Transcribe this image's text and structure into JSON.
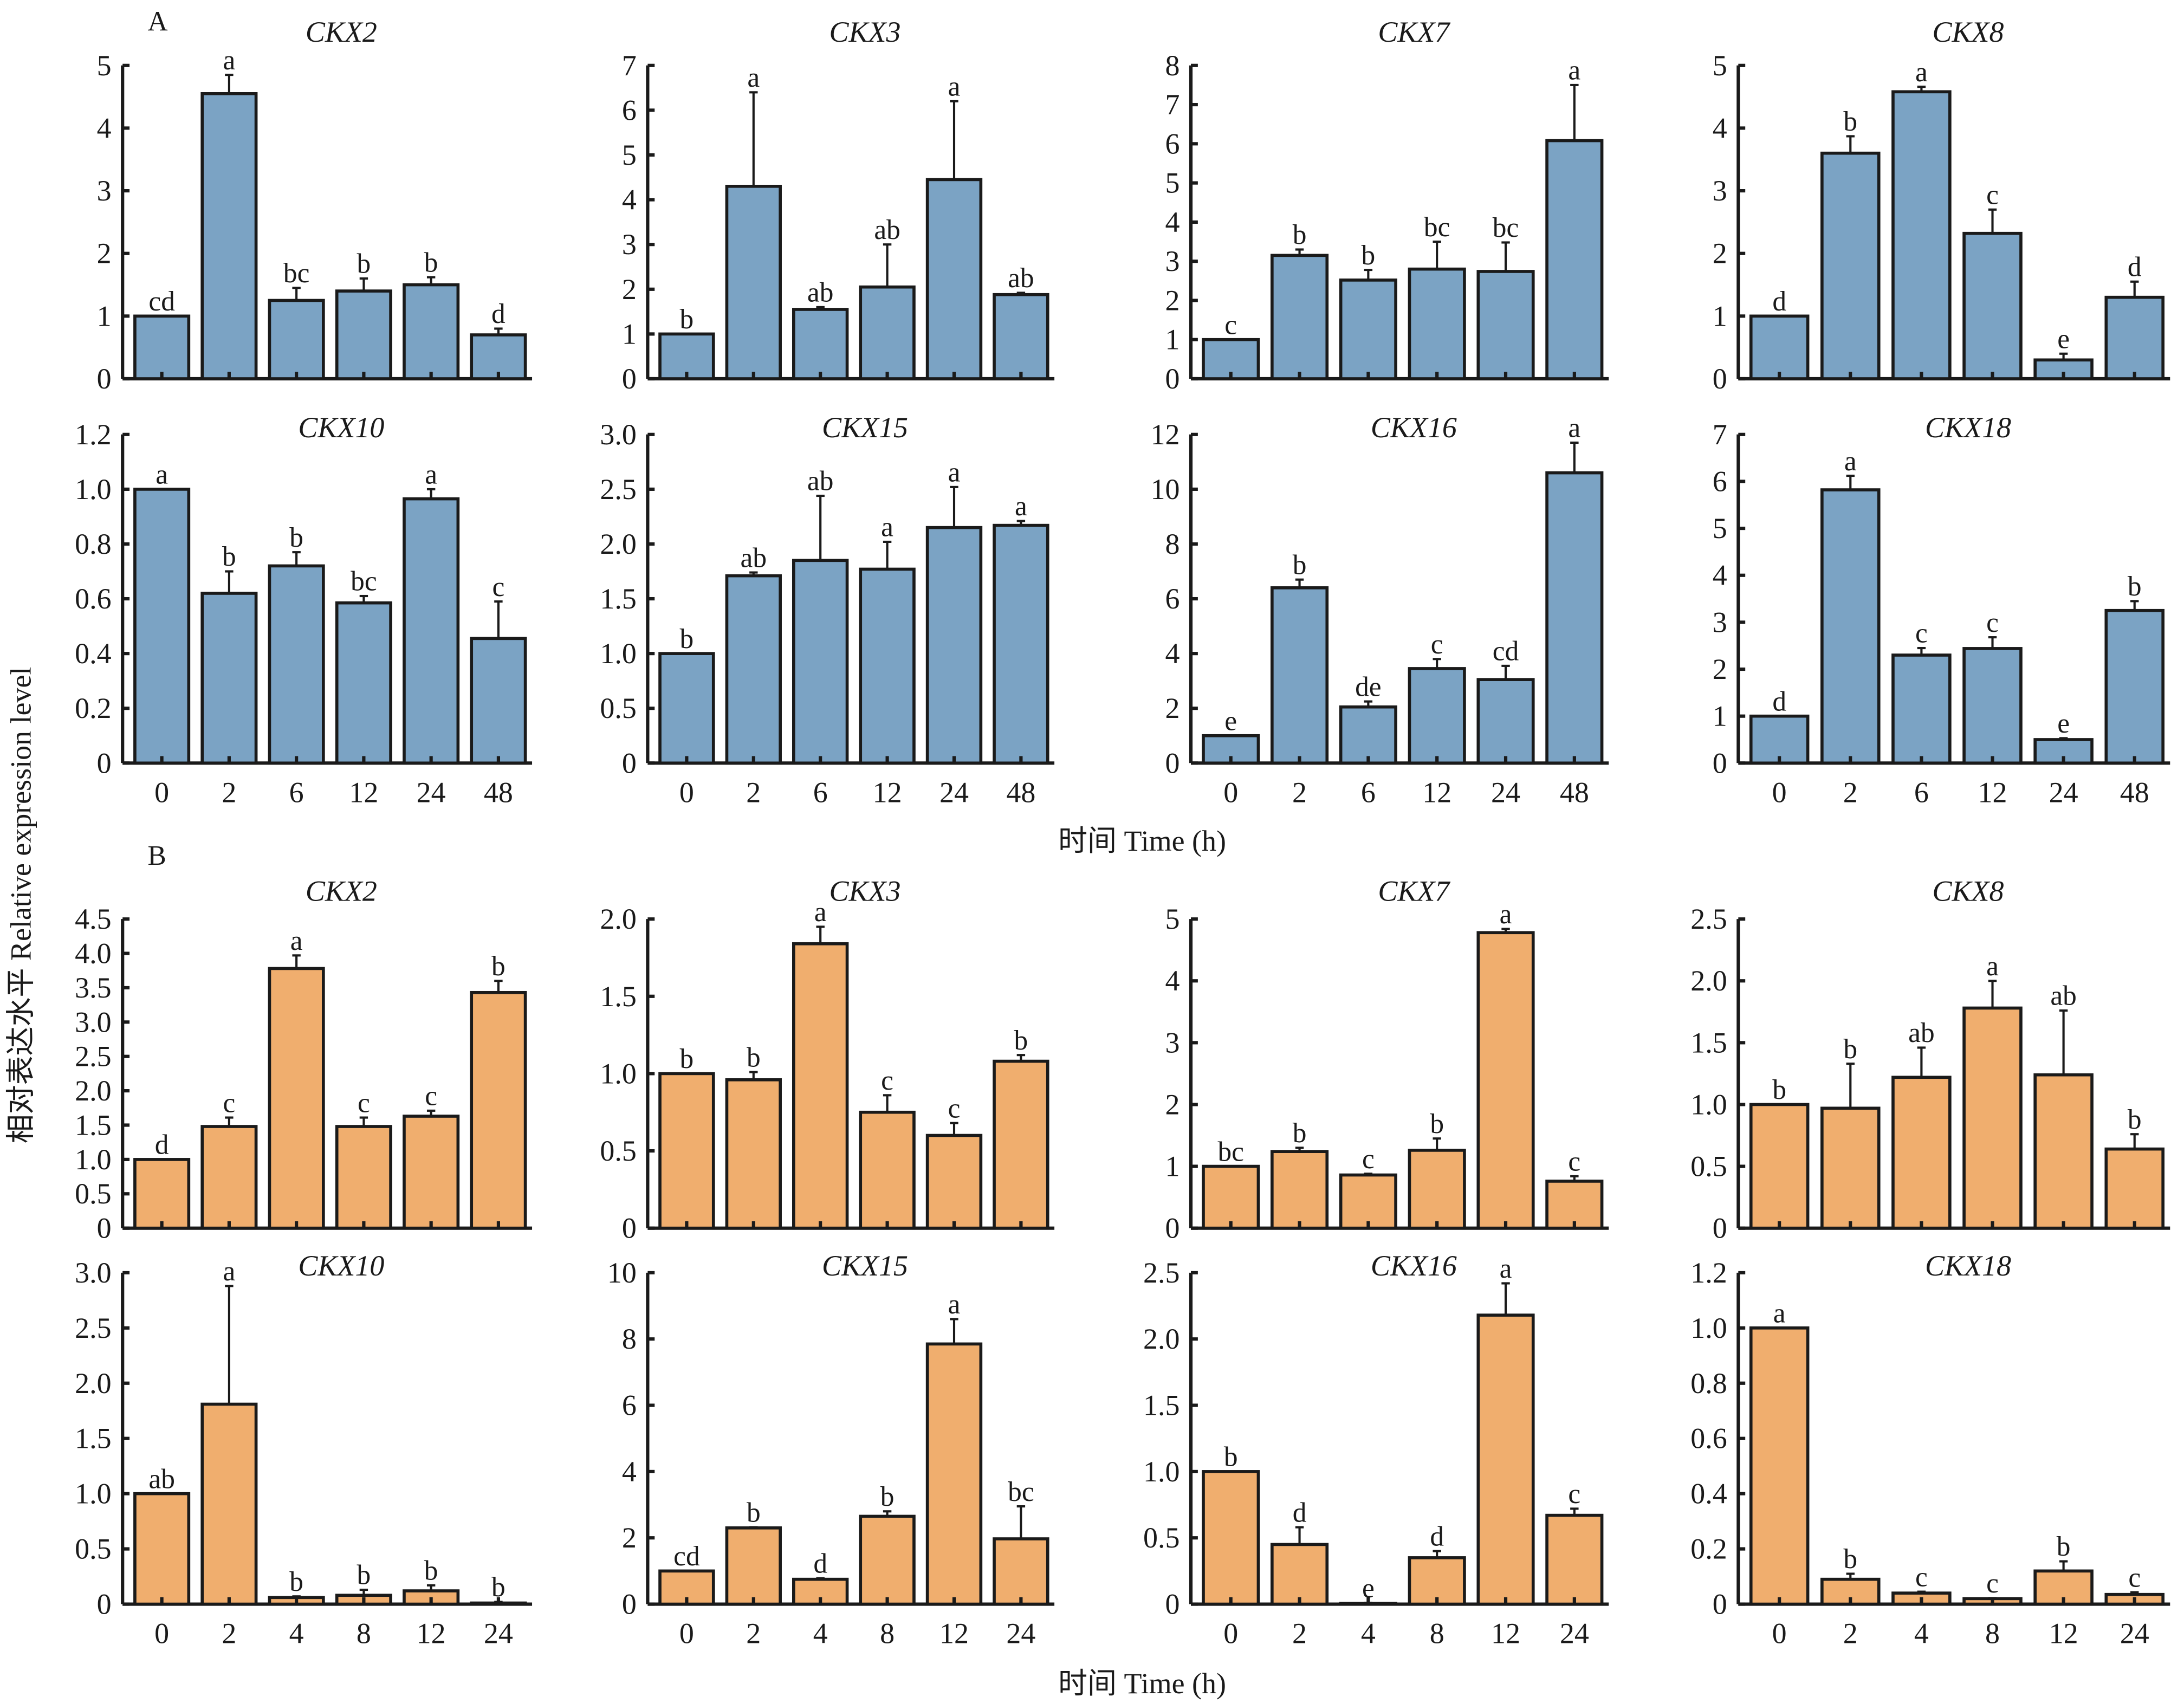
{
  "figure": {
    "y_axis_label": "相对表达水平 Relative expression level",
    "x_axis_label_top": "时间 Time (h)",
    "x_axis_label_bottom": "时间 Time (h)",
    "section_labels": [
      "A",
      "B"
    ],
    "colors": {
      "panel_A": "#7ba3c4",
      "panel_B": "#f0ae6e",
      "axis": "#1a1a1a"
    }
  },
  "chart_data": [
    {
      "section": "A",
      "type": "bar",
      "title": "CKX2",
      "categories": [
        "0",
        "2",
        "6",
        "12",
        "24",
        "48"
      ],
      "values": [
        1.0,
        4.55,
        1.25,
        1.4,
        1.5,
        0.7
      ],
      "error_top": [
        1.0,
        4.85,
        1.45,
        1.6,
        1.62,
        0.8
      ],
      "letters": [
        "cd",
        "a",
        "bc",
        "b",
        "b",
        "d"
      ],
      "ylim": [
        0,
        5
      ],
      "yticks": [
        "0",
        "1",
        "2",
        "3",
        "4",
        "5"
      ],
      "show_xticklabels": false
    },
    {
      "section": "A",
      "type": "bar",
      "title": "CKX3",
      "categories": [
        "0",
        "2",
        "6",
        "12",
        "24",
        "48"
      ],
      "values": [
        1.0,
        4.3,
        1.55,
        2.05,
        4.45,
        1.88
      ],
      "error_top": [
        1.0,
        6.4,
        1.6,
        3.0,
        6.2,
        1.92
      ],
      "letters": [
        "b",
        "a",
        "ab",
        "ab",
        "a",
        "ab"
      ],
      "ylim": [
        0,
        7
      ],
      "yticks": [
        "0",
        "1",
        "2",
        "3",
        "4",
        "5",
        "6",
        "7"
      ],
      "show_xticklabels": false
    },
    {
      "section": "A",
      "type": "bar",
      "title": "CKX7",
      "categories": [
        "0",
        "2",
        "6",
        "12",
        "24",
        "48"
      ],
      "values": [
        1.0,
        3.15,
        2.52,
        2.8,
        2.74,
        6.08
      ],
      "error_top": [
        1.0,
        3.3,
        2.78,
        3.5,
        3.48,
        7.5
      ],
      "letters": [
        "c",
        "b",
        "b",
        "bc",
        "bc",
        "a"
      ],
      "ylim": [
        0,
        8
      ],
      "yticks": [
        "0",
        "1",
        "2",
        "3",
        "4",
        "5",
        "6",
        "7",
        "8"
      ],
      "show_xticklabels": false
    },
    {
      "section": "A",
      "type": "bar",
      "title": "CKX8",
      "categories": [
        "0",
        "2",
        "6",
        "12",
        "24",
        "48"
      ],
      "values": [
        1.0,
        3.6,
        4.58,
        2.32,
        0.3,
        1.3
      ],
      "error_top": [
        1.0,
        3.87,
        4.66,
        2.7,
        0.4,
        1.55
      ],
      "letters": [
        "d",
        "b",
        "a",
        "c",
        "e",
        "d"
      ],
      "ylim": [
        0,
        5
      ],
      "yticks": [
        "0",
        "1",
        "2",
        "3",
        "4",
        "5"
      ],
      "show_xticklabels": false
    },
    {
      "section": "A",
      "type": "bar",
      "title": "CKX10",
      "categories": [
        "0",
        "2",
        "6",
        "12",
        "24",
        "48"
      ],
      "values": [
        1.0,
        0.62,
        0.72,
        0.585,
        0.965,
        0.455
      ],
      "error_top": [
        1.0,
        0.7,
        0.77,
        0.61,
        1.0,
        0.59
      ],
      "letters": [
        "a",
        "b",
        "b",
        "bc",
        "a",
        "c"
      ],
      "ylim": [
        0,
        1.2
      ],
      "yticks": [
        "0",
        "0.2",
        "0.4",
        "0.6",
        "0.8",
        "1.0",
        "1.2"
      ],
      "show_xticklabels": true
    },
    {
      "section": "A",
      "type": "bar",
      "title": "CKX15",
      "categories": [
        "0",
        "2",
        "6",
        "12",
        "24",
        "48"
      ],
      "values": [
        1.0,
        1.71,
        1.85,
        1.77,
        2.15,
        2.17
      ],
      "error_top": [
        1.0,
        1.74,
        2.44,
        2.02,
        2.52,
        2.21
      ],
      "letters": [
        "b",
        "ab",
        "ab",
        "a",
        "a",
        "a"
      ],
      "ylim": [
        0,
        3.0
      ],
      "yticks": [
        "0",
        "0.5",
        "1.0",
        "1.5",
        "2.0",
        "2.5",
        "3.0"
      ],
      "show_xticklabels": true
    },
    {
      "section": "A",
      "type": "bar",
      "title": "CKX16",
      "categories": [
        "0",
        "2",
        "6",
        "12",
        "24",
        "48"
      ],
      "values": [
        1.0,
        6.4,
        2.05,
        3.45,
        3.05,
        10.6
      ],
      "error_top": [
        1.0,
        6.7,
        2.25,
        3.8,
        3.55,
        11.7
      ],
      "letters": [
        "e",
        "b",
        "de",
        "c",
        "cd",
        "a"
      ],
      "ylim": [
        0,
        12
      ],
      "yticks": [
        "0",
        "2",
        "4",
        "6",
        "8",
        "10",
        "12"
      ],
      "show_xticklabels": true
    },
    {
      "section": "A",
      "type": "bar",
      "title": "CKX18",
      "categories": [
        "0",
        "2",
        "6",
        "12",
        "24",
        "48"
      ],
      "values": [
        1.0,
        5.82,
        2.3,
        2.44,
        0.5,
        3.25
      ],
      "error_top": [
        1.0,
        6.12,
        2.45,
        2.68,
        0.53,
        3.45
      ],
      "letters": [
        "d",
        "a",
        "c",
        "c",
        "e",
        "b"
      ],
      "ylim": [
        0,
        7
      ],
      "yticks": [
        "0",
        "1",
        "2",
        "3",
        "4",
        "5",
        "6",
        "7"
      ],
      "show_xticklabels": true
    },
    {
      "section": "B",
      "type": "bar",
      "title": "CKX2",
      "categories": [
        "0",
        "2",
        "4",
        "8",
        "12",
        "24"
      ],
      "values": [
        1.0,
        1.48,
        3.78,
        1.48,
        1.63,
        3.43
      ],
      "error_top": [
        1.0,
        1.61,
        3.97,
        1.61,
        1.71,
        3.6
      ],
      "letters": [
        "d",
        "c",
        "a",
        "c",
        "c",
        "b"
      ],
      "ylim": [
        0,
        4.5
      ],
      "yticks": [
        "0",
        "0.5",
        "1.0",
        "1.5",
        "2.0",
        "2.5",
        "3.0",
        "3.5",
        "4.0",
        "4.5"
      ],
      "show_xticklabels": false
    },
    {
      "section": "B",
      "type": "bar",
      "title": "CKX3",
      "categories": [
        "0",
        "2",
        "4",
        "8",
        "12",
        "24"
      ],
      "values": [
        1.0,
        0.96,
        1.84,
        0.75,
        0.6,
        1.08
      ],
      "error_top": [
        1.0,
        1.01,
        1.95,
        0.86,
        0.68,
        1.12
      ],
      "letters": [
        "b",
        "b",
        "a",
        "c",
        "c",
        "b"
      ],
      "ylim": [
        0,
        2.0
      ],
      "yticks": [
        "0",
        "0.5",
        "1.0",
        "1.5",
        "2.0"
      ],
      "show_xticklabels": false
    },
    {
      "section": "B",
      "type": "bar",
      "title": "CKX7",
      "categories": [
        "0",
        "2",
        "4",
        "8",
        "12",
        "24"
      ],
      "values": [
        1.0,
        1.24,
        0.86,
        1.26,
        4.78,
        0.76
      ],
      "error_top": [
        1.0,
        1.3,
        0.88,
        1.45,
        4.84,
        0.84
      ],
      "letters": [
        "bc",
        "b",
        "c",
        "b",
        "a",
        "c"
      ],
      "ylim": [
        0,
        5
      ],
      "yticks": [
        "0",
        "1",
        "2",
        "3",
        "4",
        "5"
      ],
      "show_xticklabels": false
    },
    {
      "section": "B",
      "type": "bar",
      "title": "CKX8",
      "categories": [
        "0",
        "2",
        "4",
        "8",
        "12",
        "24"
      ],
      "values": [
        1.0,
        0.97,
        1.22,
        1.78,
        1.24,
        0.64
      ],
      "error_top": [
        1.0,
        1.33,
        1.46,
        2.0,
        1.76,
        0.76
      ],
      "letters": [
        "b",
        "b",
        "ab",
        "a",
        "ab",
        "b"
      ],
      "ylim": [
        0,
        2.5
      ],
      "yticks": [
        "0",
        "0.5",
        "1.0",
        "1.5",
        "2.0",
        "2.5"
      ],
      "show_xticklabels": false
    },
    {
      "section": "B",
      "type": "bar",
      "title": "CKX10",
      "categories": [
        "0",
        "2",
        "4",
        "8",
        "12",
        "24"
      ],
      "values": [
        1.0,
        1.81,
        0.06,
        0.08,
        0.12,
        0.01
      ],
      "error_top": [
        1.0,
        2.88,
        0.07,
        0.13,
        0.17,
        0.02
      ],
      "letters": [
        "ab",
        "a",
        "b",
        "b",
        "b",
        "b"
      ],
      "ylim": [
        0,
        3.0
      ],
      "yticks": [
        "0",
        "0.5",
        "1.0",
        "1.5",
        "2.0",
        "2.5",
        "3.0"
      ],
      "show_xticklabels": true
    },
    {
      "section": "B",
      "type": "bar",
      "title": "CKX15",
      "categories": [
        "0",
        "2",
        "4",
        "8",
        "12",
        "24"
      ],
      "values": [
        1.0,
        2.3,
        0.75,
        2.65,
        7.85,
        1.97
      ],
      "error_top": [
        1.0,
        2.32,
        0.78,
        2.8,
        8.6,
        2.95
      ],
      "letters": [
        "cd",
        "b",
        "d",
        "b",
        "a",
        "bc"
      ],
      "ylim": [
        0,
        10
      ],
      "yticks": [
        "0",
        "2",
        "4",
        "6",
        "8",
        "10"
      ],
      "show_xticklabels": true
    },
    {
      "section": "B",
      "type": "bar",
      "title": "CKX16",
      "categories": [
        "0",
        "2",
        "4",
        "8",
        "12",
        "24"
      ],
      "values": [
        1.0,
        0.45,
        0.0,
        0.35,
        2.18,
        0.67
      ],
      "error_top": [
        1.0,
        0.58,
        0.01,
        0.4,
        2.42,
        0.72
      ],
      "letters": [
        "b",
        "d",
        "e",
        "d",
        "a",
        "c"
      ],
      "ylim": [
        0,
        2.5
      ],
      "yticks": [
        "0",
        "0.5",
        "1.0",
        "1.5",
        "2.0",
        "2.5"
      ],
      "show_xticklabels": true
    },
    {
      "section": "B",
      "type": "bar",
      "title": "CKX18",
      "categories": [
        "0",
        "2",
        "4",
        "8",
        "12",
        "24"
      ],
      "values": [
        1.0,
        0.09,
        0.04,
        0.02,
        0.12,
        0.035
      ],
      "error_top": [
        1.0,
        0.11,
        0.045,
        0.022,
        0.155,
        0.043
      ],
      "letters": [
        "a",
        "b",
        "c",
        "c",
        "b",
        "c"
      ],
      "ylim": [
        0,
        1.2
      ],
      "yticks": [
        "0",
        "0.2",
        "0.4",
        "0.6",
        "0.8",
        "1.0",
        "1.2"
      ],
      "show_xticklabels": true
    }
  ]
}
